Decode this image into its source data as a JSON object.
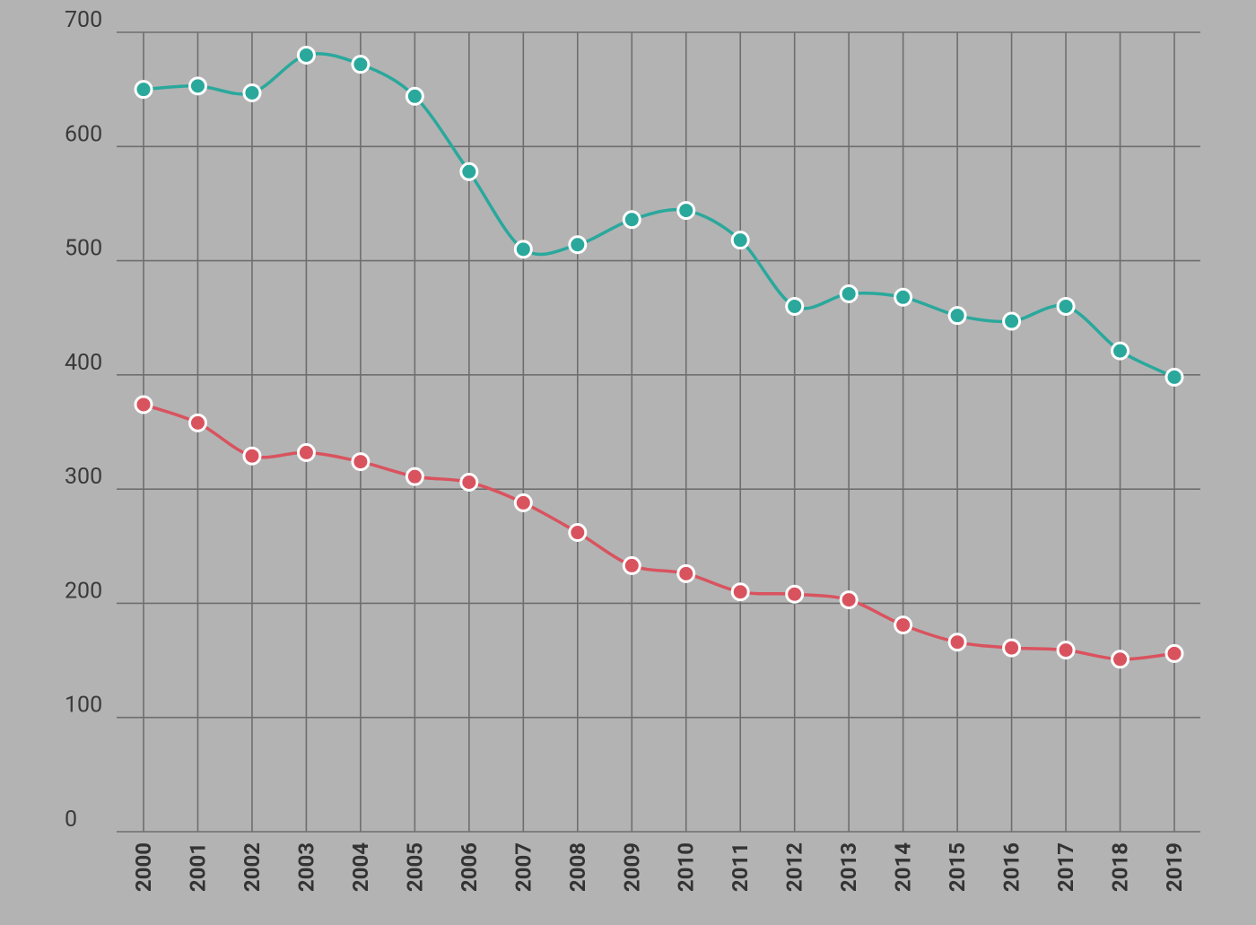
{
  "chart_data": {
    "type": "line",
    "categories": [
      "2000",
      "2001",
      "2002",
      "2003",
      "2004",
      "2005",
      "2006",
      "2007",
      "2008",
      "2009",
      "2010",
      "2011",
      "2012",
      "2013",
      "2014",
      "2015",
      "2016",
      "2017",
      "2018",
      "2019"
    ],
    "series": [
      {
        "color": "#2aa89c",
        "values": [
          650,
          653,
          647,
          680,
          672,
          644,
          578,
          510,
          514,
          536,
          544,
          518,
          460,
          471,
          468,
          452,
          447,
          460,
          421,
          398
        ]
      },
      {
        "color": "#d9535f",
        "values": [
          374,
          358,
          329,
          332,
          324,
          311,
          306,
          288,
          262,
          233,
          226,
          210,
          208,
          203,
          181,
          166,
          161,
          159,
          151,
          156
        ]
      }
    ],
    "ylim": [
      0,
      700
    ],
    "yticks": [
      0,
      100,
      200,
      300,
      400,
      500,
      600,
      700
    ],
    "grid": true
  }
}
